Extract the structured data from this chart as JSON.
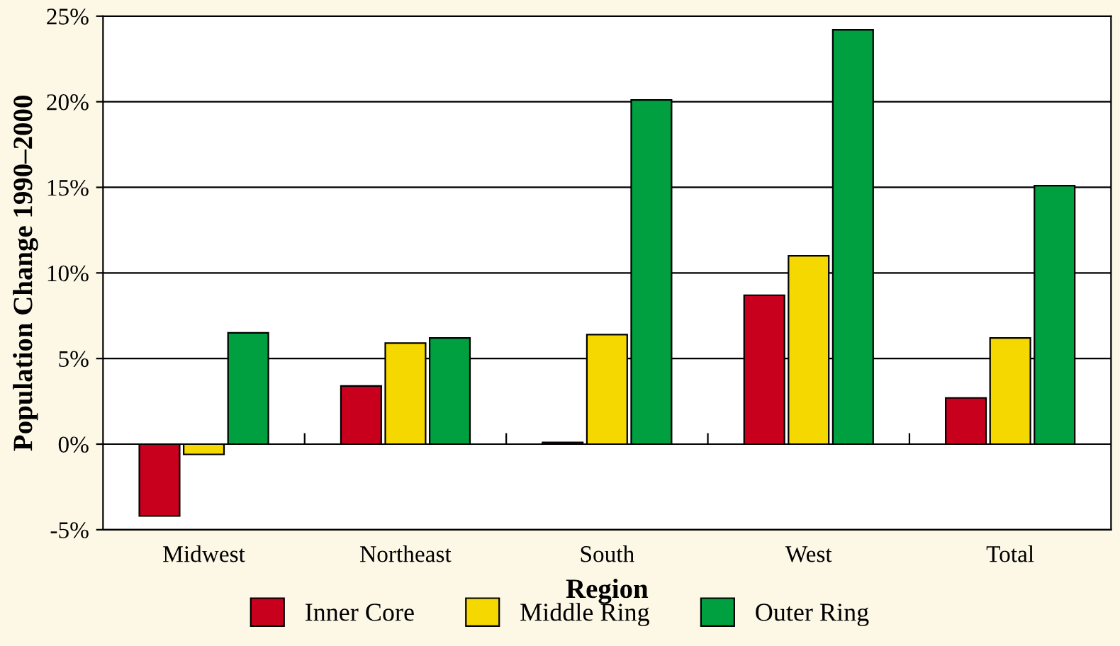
{
  "chart_data": {
    "type": "bar",
    "xlabel": "Region",
    "ylabel": "Population Change 1990–2000",
    "categories": [
      "Midwest",
      "Northeast",
      "South",
      "West",
      "Total"
    ],
    "series": [
      {
        "name": "Inner Core",
        "color": "#c8001e",
        "values": [
          -4.2,
          3.4,
          0.1,
          8.7,
          2.7
        ]
      },
      {
        "name": "Middle Ring",
        "color": "#f5d800",
        "values": [
          -0.6,
          5.9,
          6.4,
          11.0,
          6.2
        ]
      },
      {
        "name": "Outer Ring",
        "color": "#00a040",
        "values": [
          6.5,
          6.2,
          20.1,
          24.2,
          15.1
        ]
      }
    ],
    "ylim": [
      -5,
      25
    ],
    "yticks": [
      {
        "value": -5,
        "label": "-5%"
      },
      {
        "value": 0,
        "label": "0%"
      },
      {
        "value": 5,
        "label": "5%"
      },
      {
        "value": 10,
        "label": "10%"
      },
      {
        "value": 15,
        "label": "15%"
      },
      {
        "value": 20,
        "label": "20%"
      },
      {
        "value": 25,
        "label": "25%"
      }
    ],
    "grid": "y",
    "legend": "bottom"
  }
}
